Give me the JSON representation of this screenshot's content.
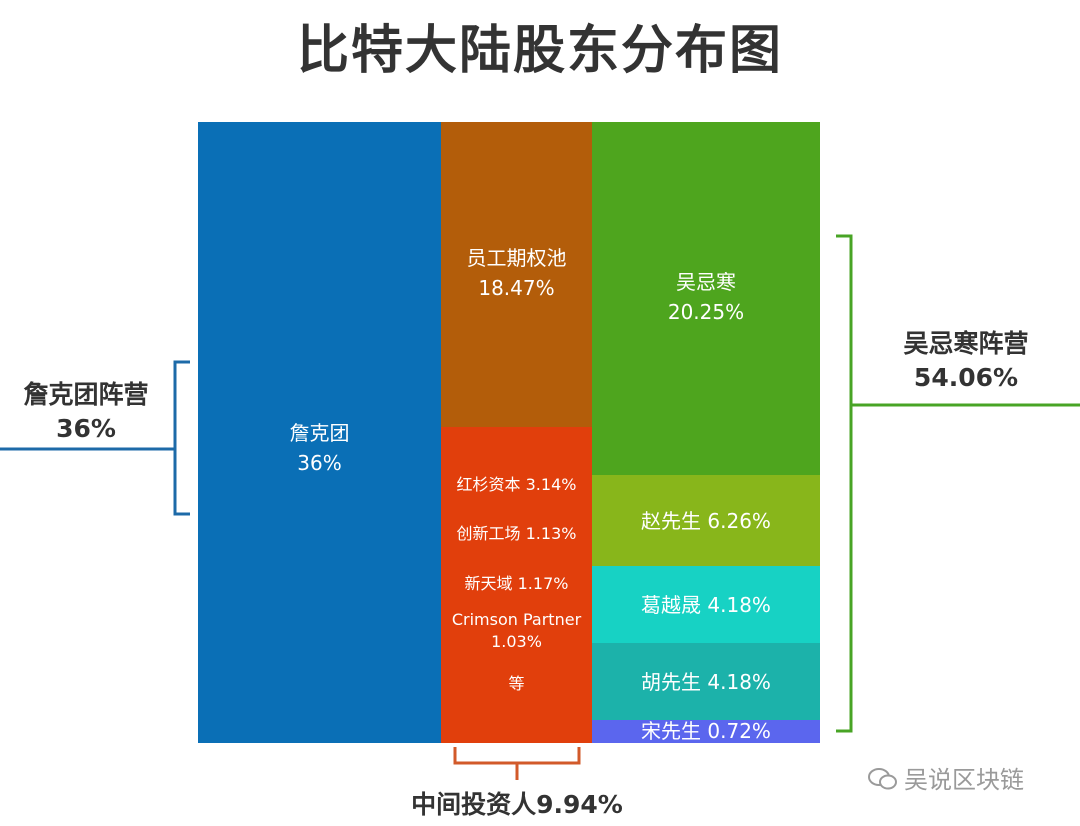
{
  "title": "比特大陆股东分布图",
  "colors": {
    "zhan": "#0a6fb6",
    "pool": "#b35d0a",
    "investors": "#e13f0c",
    "wu": "#4ea51e",
    "zhao": "#88b61b",
    "ge": "#17d2c4",
    "hu": "#1cb2aa",
    "song": "#5b66ee",
    "blue_camp": "#1d6aa8",
    "green_camp": "#48a425",
    "orange_camp": "#d25a2a"
  },
  "chart_data": {
    "type": "treemap",
    "blocks": [
      {
        "name": "詹克团",
        "value": 36,
        "value_label": "36%"
      },
      {
        "name": "员工期权池",
        "value": 18.47,
        "value_label": "18.47%"
      },
      {
        "name": "中间投资人",
        "value": 9.94,
        "value_label": "9.94%",
        "items": [
          {
            "name": "红杉资本",
            "value": 3.14,
            "text": "红杉资本 3.14%"
          },
          {
            "name": "创新工场",
            "value": 1.13,
            "text": "创新工场 1.13%"
          },
          {
            "name": "新天域",
            "value": 1.17,
            "text": "新天域 1.17%"
          },
          {
            "name": "Crimson Partner",
            "value": 1.03,
            "text": "Crimson Partner",
            "value_text": "1.03%"
          },
          {
            "name": "等",
            "text": "等"
          }
        ]
      },
      {
        "name": "吴忌寒",
        "value": 20.25,
        "value_label": "20.25%"
      },
      {
        "name": "赵先生",
        "value": 6.26,
        "text": "赵先生 6.26%"
      },
      {
        "name": "葛越晟",
        "value": 4.18,
        "text": "葛越晟 4.18%"
      },
      {
        "name": "胡先生",
        "value": 4.18,
        "text": "胡先生 4.18%"
      },
      {
        "name": "宋先生",
        "value": 0.72,
        "text": "宋先生 0.72%"
      }
    ],
    "groups": [
      {
        "name": "詹克团阵营",
        "value": 36,
        "value_label": "36%"
      },
      {
        "name": "吴忌寒阵营",
        "value": 54.06,
        "value_label": "54.06%"
      },
      {
        "name": "中间投资人",
        "value": 9.94,
        "label": "中间投资人9.94%"
      }
    ]
  },
  "watermark": "吴说区块链"
}
